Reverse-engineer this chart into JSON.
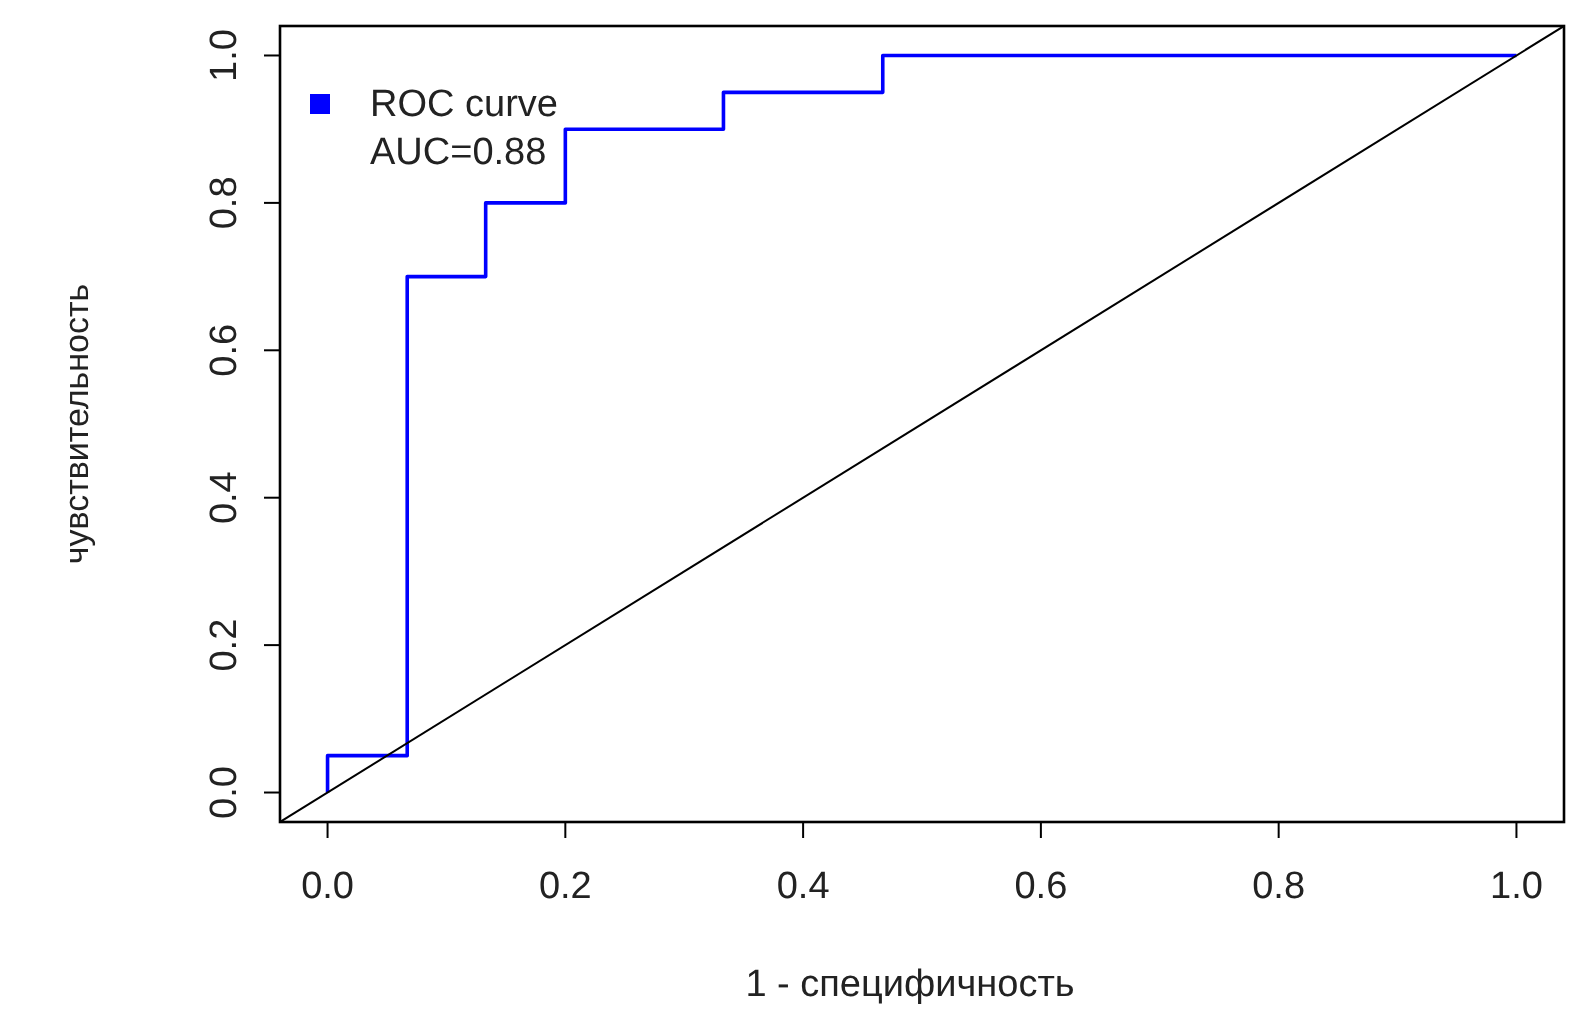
{
  "chart_data": {
    "type": "line",
    "xlabel": "1 - специфичность",
    "ylabel": "чувствительность",
    "xlim": [
      -0.04,
      1.04
    ],
    "ylim": [
      -0.04,
      1.04
    ],
    "xticks": [
      {
        "value": 0,
        "label": "0.0"
      },
      0.2,
      0.4,
      0.6,
      0.8,
      {
        "value": 1,
        "label": "1.0"
      }
    ],
    "yticks": [
      {
        "value": 0,
        "label": "0.0"
      },
      0.2,
      0.4,
      0.6,
      0.8,
      {
        "value": 1,
        "label": "1.0"
      }
    ],
    "grid": false,
    "legend": "top left",
    "marker": "none",
    "line_style": "solid",
    "annotations": [
      "AUC=0.88"
    ],
    "series": [
      {
        "type": "step",
        "name": "ROC curve",
        "color": "#0000ff",
        "x": [
          0,
          0,
          0.067,
          0.133,
          0.2,
          0.333,
          0.467,
          1
        ],
        "values": [
          0,
          0.05,
          0.7,
          0.8,
          0.9,
          0.95,
          1,
          1
        ]
      },
      {
        "color": "#000000",
        "x": [
          -0.04,
          1.04
        ],
        "values": [
          -0.04,
          1.04
        ]
      }
    ]
  }
}
